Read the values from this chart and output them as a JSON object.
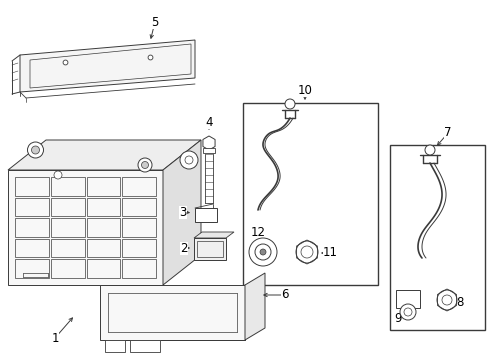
{
  "bg_color": "#ffffff",
  "line_color": "#3a3a3a",
  "label_color": "#000000",
  "fig_width": 4.89,
  "fig_height": 3.6,
  "dpi": 100
}
